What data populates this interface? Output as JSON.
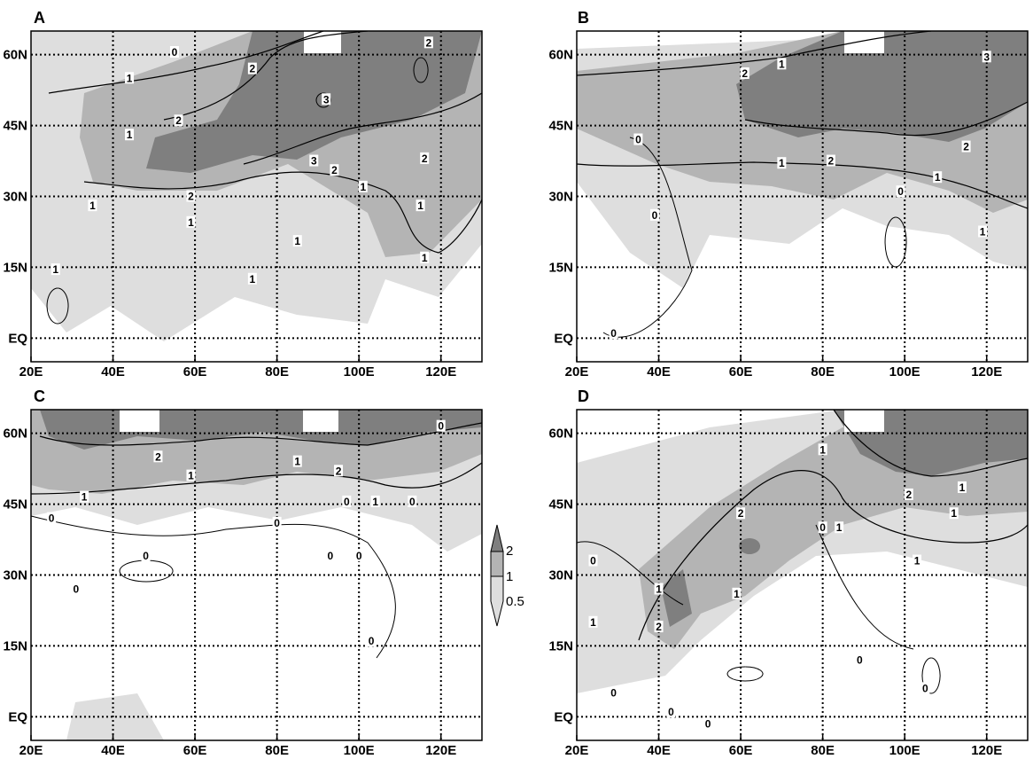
{
  "panels": [
    {
      "label": "A",
      "contour_labels": [
        {
          "text": "0",
          "lon": 55,
          "lat": 60.5
        },
        {
          "text": "1",
          "lon": 44,
          "lat": 55
        },
        {
          "text": "2",
          "lon": 74,
          "lat": 57
        },
        {
          "text": "2",
          "lon": 117,
          "lat": 62.5
        },
        {
          "text": "3",
          "lon": 92,
          "lat": 50.5
        },
        {
          "text": "1",
          "lon": 44,
          "lat": 43
        },
        {
          "text": "2",
          "lon": 56,
          "lat": 46
        },
        {
          "text": "3",
          "lon": 89,
          "lat": 37.5
        },
        {
          "text": "2",
          "lon": 94,
          "lat": 35.5
        },
        {
          "text": "2",
          "lon": 116,
          "lat": 38
        },
        {
          "text": "1",
          "lon": 101,
          "lat": 32
        },
        {
          "text": "2",
          "lon": 59,
          "lat": 30
        },
        {
          "text": "1",
          "lon": 35,
          "lat": 28
        },
        {
          "text": "1",
          "lon": 59,
          "lat": 24.5
        },
        {
          "text": "1",
          "lon": 115,
          "lat": 28
        },
        {
          "text": "1",
          "lon": 85,
          "lat": 20.5
        },
        {
          "text": "1",
          "lon": 116,
          "lat": 17
        },
        {
          "text": "1",
          "lon": 26,
          "lat": 14.5
        },
        {
          "text": "1",
          "lon": 74,
          "lat": 12.5
        }
      ]
    },
    {
      "label": "B",
      "contour_labels": [
        {
          "text": "1",
          "lon": 70,
          "lat": 58
        },
        {
          "text": "2",
          "lon": 61,
          "lat": 56
        },
        {
          "text": "3",
          "lon": 120,
          "lat": 59.5
        },
        {
          "text": "0",
          "lon": 35,
          "lat": 42
        },
        {
          "text": "2",
          "lon": 115,
          "lat": 40.5
        },
        {
          "text": "1",
          "lon": 70,
          "lat": 37
        },
        {
          "text": "2",
          "lon": 82,
          "lat": 37.5
        },
        {
          "text": "1",
          "lon": 108,
          "lat": 34
        },
        {
          "text": "0",
          "lon": 99,
          "lat": 31
        },
        {
          "text": "0",
          "lon": 39,
          "lat": 26
        },
        {
          "text": "1",
          "lon": 119,
          "lat": 22.5
        },
        {
          "text": "0",
          "lon": 29,
          "lat": 1
        }
      ]
    },
    {
      "label": "C",
      "contour_labels": [
        {
          "text": "2",
          "lon": 51,
          "lat": 55
        },
        {
          "text": "1",
          "lon": 59,
          "lat": 51
        },
        {
          "text": "1",
          "lon": 85,
          "lat": 54
        },
        {
          "text": "2",
          "lon": 95,
          "lat": 52
        },
        {
          "text": "0",
          "lon": 120,
          "lat": 61.5
        },
        {
          "text": "1",
          "lon": 33,
          "lat": 46.5
        },
        {
          "text": "0",
          "lon": 97,
          "lat": 45.5
        },
        {
          "text": "1",
          "lon": 104,
          "lat": 45.5
        },
        {
          "text": "0",
          "lon": 113,
          "lat": 45.5
        },
        {
          "text": "0",
          "lon": 25,
          "lat": 42
        },
        {
          "text": "0",
          "lon": 80,
          "lat": 41
        },
        {
          "text": "0",
          "lon": 48,
          "lat": 34
        },
        {
          "text": "0",
          "lon": 93,
          "lat": 34
        },
        {
          "text": "0",
          "lon": 100,
          "lat": 34
        },
        {
          "text": "0",
          "lon": 31,
          "lat": 27
        },
        {
          "text": "0",
          "lon": 103,
          "lat": 16
        }
      ]
    },
    {
      "label": "D",
      "contour_labels": [
        {
          "text": "1",
          "lon": 80,
          "lat": 56.5
        },
        {
          "text": "1",
          "lon": 114,
          "lat": 48.5
        },
        {
          "text": "2",
          "lon": 101,
          "lat": 47
        },
        {
          "text": "2",
          "lon": 60,
          "lat": 43
        },
        {
          "text": "1",
          "lon": 112,
          "lat": 43
        },
        {
          "text": "0",
          "lon": 80,
          "lat": 40
        },
        {
          "text": "1",
          "lon": 84,
          "lat": 40
        },
        {
          "text": "0",
          "lon": 24,
          "lat": 33
        },
        {
          "text": "1",
          "lon": 103,
          "lat": 33
        },
        {
          "text": "1",
          "lon": 40,
          "lat": 27
        },
        {
          "text": "1",
          "lon": 59,
          "lat": 26
        },
        {
          "text": "1",
          "lon": 24,
          "lat": 20
        },
        {
          "text": "2",
          "lon": 40,
          "lat": 19
        },
        {
          "text": "0",
          "lon": 89,
          "lat": 12
        },
        {
          "text": "0",
          "lon": 29,
          "lat": 5
        },
        {
          "text": "0",
          "lon": 105,
          "lat": 6
        },
        {
          "text": "0",
          "lon": 43,
          "lat": 1
        },
        {
          "text": "0",
          "lon": 52,
          "lat": -1.5
        }
      ]
    }
  ],
  "axes": {
    "lon_ticks": [
      "20E",
      "40E",
      "60E",
      "80E",
      "100E",
      "120E"
    ],
    "lat_ticks": [
      "60N",
      "45N",
      "30N",
      "15N",
      "EQ"
    ],
    "lon_range": [
      20,
      130
    ],
    "lat_range": [
      -5,
      65
    ]
  },
  "legend": {
    "labels": [
      "2",
      "1",
      "0.5"
    ],
    "colors": [
      "#7f7f7f",
      "#b4b4b4",
      "#dedede"
    ]
  },
  "colors": {
    "shade_dark": "#7f7f7f",
    "shade_mid": "#b4b4b4",
    "shade_light": "#dedede"
  }
}
